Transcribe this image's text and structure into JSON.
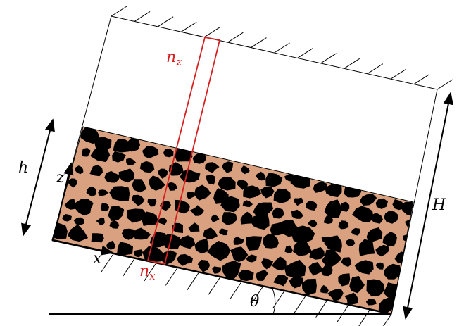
{
  "labels": {
    "nz": {
      "base": "n",
      "sub": "z"
    },
    "nx": {
      "base": "n",
      "sub": "x"
    },
    "h": "h",
    "H": "H",
    "z": "z",
    "x": "x",
    "theta": "θ"
  },
  "colors": {
    "granular_fill": "#d9a17f",
    "grain": "#000000",
    "column": "#d62020",
    "outline": "#000000"
  }
}
